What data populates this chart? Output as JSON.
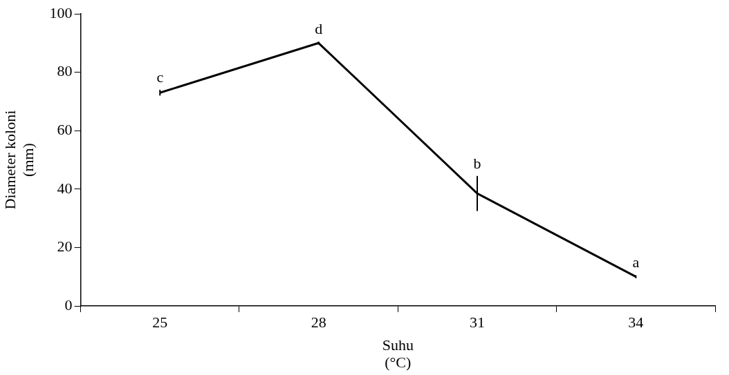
{
  "chart_data": {
    "type": "line",
    "xlabel": "Suhu\n(°C)",
    "ylabel": "Diameter koloni\n(mm)",
    "categories": [
      "25",
      "28",
      "31",
      "34"
    ],
    "series": [
      {
        "color": "#000000",
        "values": [
          73,
          90,
          38.5,
          10
        ],
        "errors": [
          1,
          0.5,
          6,
          0.5
        ]
      }
    ],
    "ylim": [
      0,
      100
    ],
    "yticks": [
      0,
      20,
      40,
      60,
      80,
      100
    ],
    "grid": false,
    "legend": false,
    "marker": "none",
    "line_style": "solid",
    "annotations": [
      {
        "text": "c",
        "x": "25",
        "y": 73
      },
      {
        "text": "d",
        "x": "28",
        "y": 90
      },
      {
        "text": "b",
        "x": "31",
        "y": 38.5
      },
      {
        "text": "a",
        "x": "34",
        "y": 10
      }
    ]
  }
}
